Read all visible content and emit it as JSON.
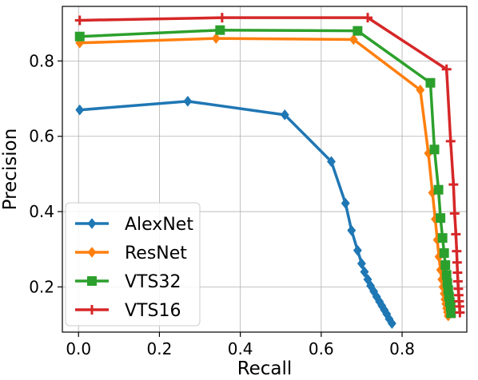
{
  "chart_data": {
    "type": "line",
    "xlabel": "Recall",
    "ylabel": "Precision",
    "xlim": [
      -0.04,
      0.96
    ],
    "ylim": [
      0.08,
      0.945
    ],
    "xticks": [
      0.0,
      0.2,
      0.4,
      0.6,
      0.8
    ],
    "xtick_labels": [
      "0.0",
      "0.2",
      "0.4",
      "0.6",
      "0.8"
    ],
    "yticks": [
      0.2,
      0.4,
      0.6,
      0.8
    ],
    "ytick_labels": [
      "0.2",
      "0.4",
      "0.6",
      "0.8"
    ],
    "grid": true,
    "legend_position": "lower-left",
    "series": [
      {
        "name": "AlexNet",
        "color": "#1f77b4",
        "marker": "diamond",
        "x": [
          0.003,
          0.27,
          0.51,
          0.625,
          0.66,
          0.675,
          0.69,
          0.7,
          0.707,
          0.715,
          0.722,
          0.73,
          0.737,
          0.744,
          0.75,
          0.756,
          0.762,
          0.768,
          0.775
        ],
        "y": [
          0.67,
          0.693,
          0.657,
          0.533,
          0.422,
          0.35,
          0.297,
          0.262,
          0.24,
          0.22,
          0.203,
          0.188,
          0.174,
          0.161,
          0.15,
          0.139,
          0.128,
          0.115,
          0.103
        ]
      },
      {
        "name": "ResNet",
        "color": "#ff7f0e",
        "marker": "diamond",
        "x": [
          0.003,
          0.34,
          0.68,
          0.845,
          0.865,
          0.875,
          0.882,
          0.887,
          0.891,
          0.895,
          0.898,
          0.901,
          0.904,
          0.906,
          0.908,
          0.91,
          0.912,
          0.914
        ],
        "y": [
          0.848,
          0.86,
          0.857,
          0.723,
          0.555,
          0.45,
          0.38,
          0.325,
          0.28,
          0.245,
          0.22,
          0.2,
          0.182,
          0.167,
          0.155,
          0.143,
          0.133,
          0.123
        ]
      },
      {
        "name": "VTS32",
        "color": "#2ca02c",
        "marker": "square",
        "x": [
          0.003,
          0.35,
          0.69,
          0.87,
          0.88,
          0.89,
          0.895,
          0.9,
          0.904,
          0.907,
          0.91,
          0.912,
          0.914,
          0.916,
          0.918,
          0.92,
          0.921
        ],
        "y": [
          0.865,
          0.882,
          0.88,
          0.742,
          0.565,
          0.458,
          0.383,
          0.33,
          0.29,
          0.258,
          0.232,
          0.21,
          0.192,
          0.175,
          0.16,
          0.147,
          0.13
        ]
      },
      {
        "name": "VTS16",
        "color": "#d62728",
        "marker": "plus",
        "x": [
          0.003,
          0.355,
          0.715,
          0.91,
          0.92,
          0.927,
          0.93,
          0.933,
          0.935,
          0.936,
          0.937,
          0.938,
          0.939,
          0.94,
          0.941,
          0.942,
          0.943
        ],
        "y": [
          0.908,
          0.915,
          0.915,
          0.778,
          0.587,
          0.472,
          0.395,
          0.34,
          0.295,
          0.265,
          0.238,
          0.215,
          0.195,
          0.178,
          0.162,
          0.148,
          0.132
        ]
      }
    ]
  }
}
